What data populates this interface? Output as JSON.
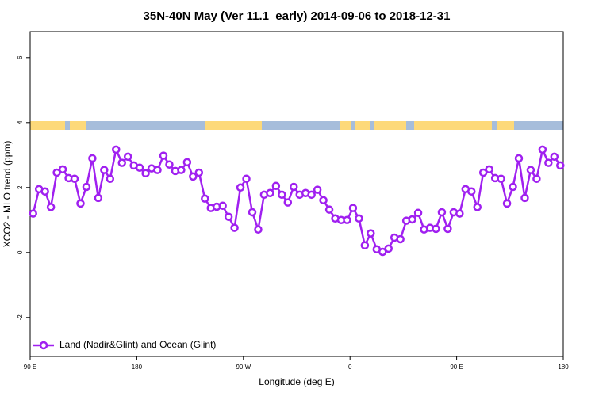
{
  "chart_data": {
    "type": "line",
    "title": "35N-40N May (Ver 11.1_early)   2014-09-06 to 2018-12-31",
    "x_label": "Longitude (deg E)",
    "y_label": "XCO2 - MLO trend (ppm)",
    "xlim": [
      90,
      540
    ],
    "ylim": [
      -3.2,
      6.8
    ],
    "xticks": [
      {
        "value": 90,
        "label": "90 E"
      },
      180,
      {
        "value": 270,
        "label": "90 W"
      },
      {
        "value": 360,
        "label": "0"
      },
      {
        "value": 450,
        "label": "90 E"
      },
      {
        "value": 540,
        "label": "180"
      }
    ],
    "yticks": [
      -2,
      0,
      2,
      4,
      6
    ],
    "grid": false,
    "legend": "bottom-left",
    "x": [
      92.5,
      97.5,
      102.5,
      107.5,
      112.5,
      117.5,
      122.5,
      127.5,
      132.5,
      137.5,
      142.5,
      147.5,
      152.5,
      157.5,
      162.5,
      167.5,
      172.5,
      177.5,
      182.5,
      187.5,
      192.5,
      197.5,
      202.5,
      207.5,
      212.5,
      217.5,
      222.5,
      227.5,
      232.5,
      237.5,
      242.5,
      247.5,
      252.5,
      257.5,
      262.5,
      267.5,
      272.5,
      277.5,
      282.5,
      287.5,
      292.5,
      297.5,
      302.5,
      307.5,
      312.5,
      317.5,
      322.5,
      327.5,
      332.5,
      337.5,
      342.5,
      347.5,
      352.5,
      357.5,
      362.5,
      367.5,
      372.5,
      377.5,
      382.5,
      387.5,
      392.5,
      397.5,
      402.5,
      407.5,
      412.5,
      417.5,
      422.5,
      427.5,
      432.5,
      437.5,
      442.5,
      447.5,
      452.5,
      457.5,
      462.5,
      467.5,
      472.5,
      477.5,
      482.5,
      487.5,
      492.5,
      497.5,
      502.5,
      507.5,
      512.5,
      517.5,
      522.5,
      527.5,
      532.5,
      537.5
    ],
    "series": [
      {
        "name": "Land (Nadir&Glint) and Ocean (Glint)",
        "color": "#a020f0",
        "values": [
          1.2,
          1.95,
          1.88,
          1.4,
          2.46,
          2.56,
          2.29,
          2.27,
          1.51,
          2.02,
          2.9,
          1.68,
          2.54,
          2.27,
          3.17,
          2.76,
          2.95,
          2.68,
          2.61,
          2.44,
          2.59,
          2.54,
          2.98,
          2.71,
          2.51,
          2.54,
          2.78,
          2.34,
          2.46,
          1.66,
          1.37,
          1.41,
          1.44,
          1.1,
          0.76,
          2.0,
          2.27,
          1.24,
          0.71,
          1.78,
          1.83,
          2.05,
          1.78,
          1.54,
          2.02,
          1.78,
          1.83,
          1.78,
          1.93,
          1.61,
          1.32,
          1.05,
          1.0,
          1.0,
          1.37,
          1.05,
          0.22,
          0.59,
          0.1,
          0.02,
          0.12,
          0.46,
          0.41,
          0.98,
          1.02,
          1.22,
          0.71,
          0.76,
          0.73,
          1.24,
          0.73,
          1.24,
          1.2,
          1.95,
          1.88,
          1.4,
          2.46,
          2.56,
          2.29,
          2.27,
          1.51,
          2.02,
          2.9,
          1.68,
          2.54,
          2.27,
          3.17,
          2.76,
          2.95,
          2.68
        ]
      }
    ]
  }
}
